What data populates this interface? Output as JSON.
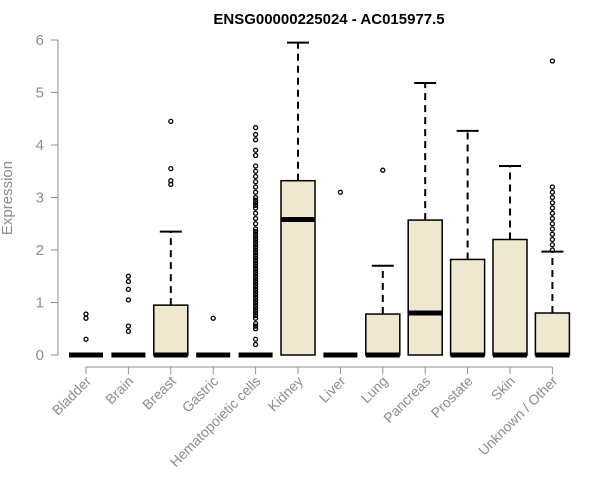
{
  "chart_data": {
    "type": "boxplot",
    "title": "ENSG00000225024 - AC015977.5",
    "ylabel": "Expression",
    "xlabel": "",
    "ylim": [
      0,
      6
    ],
    "yticks": [
      "0",
      "1",
      "2",
      "3",
      "4",
      "5",
      "6"
    ],
    "box_fill": "#efe8d0",
    "categories": [
      "Bladder",
      "Brain",
      "Breast",
      "Gastric",
      "Hematopoietic cells",
      "Kidney",
      "Liver",
      "Lung",
      "Pancreas",
      "Prostate",
      "Skin",
      "Unknown / Other"
    ],
    "boxes": [
      {
        "q1": 0,
        "median": 0,
        "q3": 0,
        "whisker_low": 0,
        "whisker_high": 0,
        "outliers": [
          0.3,
          0.7,
          0.78
        ]
      },
      {
        "q1": 0,
        "median": 0,
        "q3": 0,
        "whisker_low": 0,
        "whisker_high": 0,
        "outliers": [
          0.45,
          0.55,
          1.05,
          1.25,
          1.4,
          1.5
        ]
      },
      {
        "q1": 0,
        "median": 0,
        "q3": 0.95,
        "whisker_low": 0,
        "whisker_high": 2.35,
        "outliers": [
          3.25,
          3.32,
          3.55,
          4.45
        ]
      },
      {
        "q1": 0,
        "median": 0,
        "q3": 0,
        "whisker_low": 0,
        "whisker_high": 0,
        "outliers": [
          0.7
        ]
      },
      {
        "q1": 0,
        "median": 0,
        "q3": 0,
        "whisker_low": 0,
        "whisker_high": 0,
        "outliers": [
          0.2,
          0.3,
          0.5,
          0.55,
          0.6,
          0.7,
          0.75,
          0.8,
          0.85,
          0.9,
          0.95,
          1.0,
          1.05,
          1.1,
          1.15,
          1.2,
          1.25,
          1.3,
          1.35,
          1.4,
          1.45,
          1.5,
          1.55,
          1.6,
          1.65,
          1.7,
          1.75,
          1.8,
          1.85,
          1.9,
          1.95,
          2.0,
          2.05,
          2.1,
          2.15,
          2.2,
          2.25,
          2.3,
          2.35,
          2.4,
          2.5,
          2.6,
          2.7,
          2.8,
          2.85,
          2.9,
          2.95,
          3.0,
          3.1,
          3.2,
          3.3,
          3.4,
          3.5,
          3.6,
          3.8,
          3.9,
          4.1,
          4.2,
          4.33
        ]
      },
      {
        "q1": 0,
        "median": 2.58,
        "q3": 3.32,
        "whisker_low": 0,
        "whisker_high": 5.95,
        "outliers": []
      },
      {
        "q1": 0,
        "median": 0,
        "q3": 0,
        "whisker_low": 0,
        "whisker_high": 0,
        "outliers": [
          3.1
        ]
      },
      {
        "q1": 0,
        "median": 0,
        "q3": 0.78,
        "whisker_low": 0,
        "whisker_high": 1.7,
        "outliers": [
          3.52
        ]
      },
      {
        "q1": 0,
        "median": 0.8,
        "q3": 2.57,
        "whisker_low": 0,
        "whisker_high": 5.18,
        "outliers": []
      },
      {
        "q1": 0,
        "median": 0,
        "q3": 1.82,
        "whisker_low": 0,
        "whisker_high": 4.27,
        "outliers": []
      },
      {
        "q1": 0,
        "median": 0,
        "q3": 2.2,
        "whisker_low": 0,
        "whisker_high": 3.6,
        "outliers": []
      },
      {
        "q1": 0,
        "median": 0,
        "q3": 0.8,
        "whisker_low": 0,
        "whisker_high": 1.97,
        "outliers": [
          2.0,
          2.1,
          2.2,
          2.3,
          2.4,
          2.5,
          2.6,
          2.7,
          2.8,
          2.9,
          3.0,
          3.1,
          3.2,
          5.6
        ]
      }
    ]
  }
}
